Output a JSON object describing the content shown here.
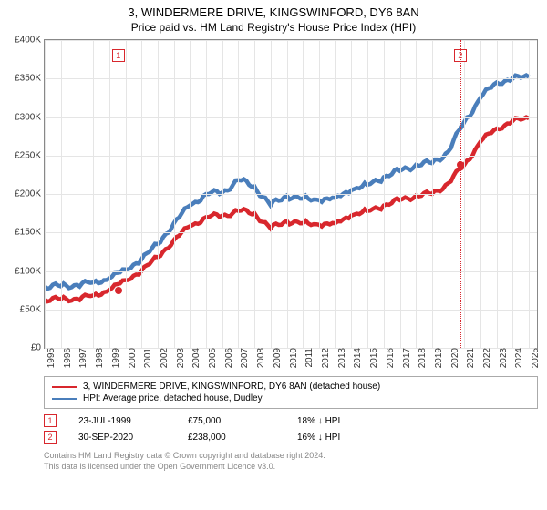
{
  "title": "3, WINDERMERE DRIVE, KINGSWINFORD, DY6 8AN",
  "subtitle": "Price paid vs. HM Land Registry's House Price Index (HPI)",
  "chart": {
    "type": "line",
    "background_color": "#ffffff",
    "grid_color": "#e5e5e5",
    "border_color": "#888888",
    "y": {
      "min": 0,
      "max": 400000,
      "ticks": [
        0,
        50000,
        100000,
        150000,
        200000,
        250000,
        300000,
        350000,
        400000
      ],
      "labels": [
        "£0",
        "£50K",
        "£100K",
        "£150K",
        "£200K",
        "£250K",
        "£300K",
        "£350K",
        "£400K"
      ],
      "label_fontsize": 10
    },
    "x": {
      "min": 1995,
      "max": 2025.5,
      "ticks": [
        1995,
        1996,
        1997,
        1998,
        1999,
        2000,
        2001,
        2002,
        2003,
        2004,
        2005,
        2006,
        2007,
        2008,
        2009,
        2010,
        2011,
        2012,
        2013,
        2014,
        2015,
        2016,
        2017,
        2018,
        2019,
        2020,
        2021,
        2022,
        2023,
        2024,
        2025
      ],
      "labels": [
        "1995",
        "1996",
        "1997",
        "1998",
        "1999",
        "2000",
        "2001",
        "2002",
        "2003",
        "2004",
        "2005",
        "2006",
        "2007",
        "2008",
        "2009",
        "2010",
        "2011",
        "2012",
        "2013",
        "2014",
        "2015",
        "2016",
        "2017",
        "2018",
        "2019",
        "2020",
        "2021",
        "2022",
        "2023",
        "2024",
        "2025"
      ],
      "label_fontsize": 10,
      "label_rotation": -90
    },
    "series": [
      {
        "name": "price_paid",
        "label": "3, WINDERMERE DRIVE, KINGSWINFORD, DY6 8AN (detached house)",
        "color": "#d8272d",
        "line_width": 1.5,
        "x": [
          1995,
          1996,
          1997,
          1998,
          1999,
          2000,
          2001,
          2002,
          2003,
          2004,
          2005,
          2006,
          2007,
          2008,
          2009,
          2010,
          2011,
          2012,
          2013,
          2014,
          2015,
          2016,
          2017,
          2018,
          2019,
          2020,
          2021,
          2022,
          2023,
          2024,
          2025
        ],
        "y": [
          63000,
          63000,
          64000,
          68000,
          75000,
          88000,
          100000,
          118000,
          140000,
          158000,
          170000,
          172000,
          178000,
          175000,
          155000,
          165000,
          162000,
          160000,
          162000,
          172000,
          178000,
          185000,
          192000,
          198000,
          200000,
          214000,
          238000,
          268000,
          285000,
          295000,
          298000
        ]
      },
      {
        "name": "hpi",
        "label": "HPI: Average price, detached house, Dudley",
        "color": "#4a7ebb",
        "line_width": 1.5,
        "x": [
          1995,
          1996,
          1997,
          1998,
          1999,
          2000,
          2001,
          2002,
          2003,
          2004,
          2005,
          2006,
          2007,
          2008,
          2009,
          2010,
          2011,
          2012,
          2013,
          2014,
          2015,
          2016,
          2017,
          2018,
          2019,
          2020,
          2021,
          2022,
          2023,
          2024,
          2025
        ],
        "y": [
          80000,
          80000,
          82000,
          85000,
          90000,
          102000,
          115000,
          135000,
          162000,
          185000,
          200000,
          202000,
          218000,
          210000,
          185000,
          198000,
          194000,
          192000,
          195000,
          205000,
          212000,
          222000,
          230000,
          238000,
          240000,
          255000,
          294000,
          325000,
          345000,
          350000,
          352000
        ]
      }
    ],
    "sale_markers": [
      {
        "num": "1",
        "x": 1999.56,
        "y": 75000,
        "color": "#d8272d",
        "box_top_y": 380000
      },
      {
        "num": "2",
        "x": 2020.75,
        "y": 238000,
        "color": "#d8272d",
        "box_top_y": 380000
      }
    ]
  },
  "legend": {
    "items": [
      {
        "color": "#d8272d",
        "label": "3, WINDERMERE DRIVE, KINGSWINFORD, DY6 8AN (detached house)"
      },
      {
        "color": "#4a7ebb",
        "label": "HPI: Average price, detached house, Dudley"
      }
    ]
  },
  "sales": [
    {
      "num": "1",
      "color": "#d8272d",
      "date": "23-JUL-1999",
      "price": "£75,000",
      "delta": "18% ↓ HPI"
    },
    {
      "num": "2",
      "color": "#d8272d",
      "date": "30-SEP-2020",
      "price": "£238,000",
      "delta": "16% ↓ HPI"
    }
  ],
  "footnote": {
    "line1": "Contains HM Land Registry data © Crown copyright and database right 2024.",
    "line2": "This data is licensed under the Open Government Licence v3.0."
  }
}
